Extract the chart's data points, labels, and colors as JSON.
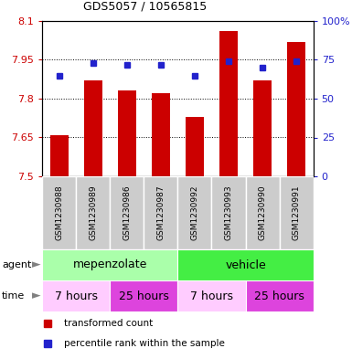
{
  "title": "GDS5057 / 10565815",
  "samples": [
    "GSM1230988",
    "GSM1230989",
    "GSM1230986",
    "GSM1230987",
    "GSM1230992",
    "GSM1230993",
    "GSM1230990",
    "GSM1230991"
  ],
  "transformed_counts": [
    7.66,
    7.87,
    7.83,
    7.82,
    7.73,
    8.06,
    7.87,
    8.02
  ],
  "percentile_ranks": [
    65,
    73,
    72,
    72,
    65,
    74,
    70,
    74
  ],
  "ylim_left": [
    7.5,
    8.1
  ],
  "ylim_right": [
    0,
    100
  ],
  "yticks_left": [
    7.5,
    7.65,
    7.8,
    7.95,
    8.1
  ],
  "yticks_right": [
    0,
    25,
    50,
    75,
    100
  ],
  "ytick_labels_left": [
    "7.5",
    "7.65",
    "7.8",
    "7.95",
    "8.1"
  ],
  "ytick_labels_right": [
    "0",
    "25",
    "50",
    "75",
    "100%"
  ],
  "bar_color": "#cc0000",
  "dot_color": "#2222cc",
  "bar_bottom": 7.5,
  "agent_groups": [
    {
      "label": "mepenzolate",
      "start": 0,
      "end": 4,
      "color": "#aaffaa"
    },
    {
      "label": "vehicle",
      "start": 4,
      "end": 8,
      "color": "#44ee44"
    }
  ],
  "time_groups": [
    {
      "label": "7 hours",
      "start": 0,
      "end": 2,
      "color": "#ffccff"
    },
    {
      "label": "25 hours",
      "start": 2,
      "end": 4,
      "color": "#dd44dd"
    },
    {
      "label": "7 hours",
      "start": 4,
      "end": 6,
      "color": "#ffccff"
    },
    {
      "label": "25 hours",
      "start": 6,
      "end": 8,
      "color": "#dd44dd"
    }
  ],
  "legend_items": [
    {
      "label": "transformed count",
      "color": "#cc0000"
    },
    {
      "label": "percentile rank within the sample",
      "color": "#2222cc"
    }
  ],
  "bar_width": 0.55,
  "bg_color": "#ffffff",
  "sample_bg_color": "#cccccc"
}
